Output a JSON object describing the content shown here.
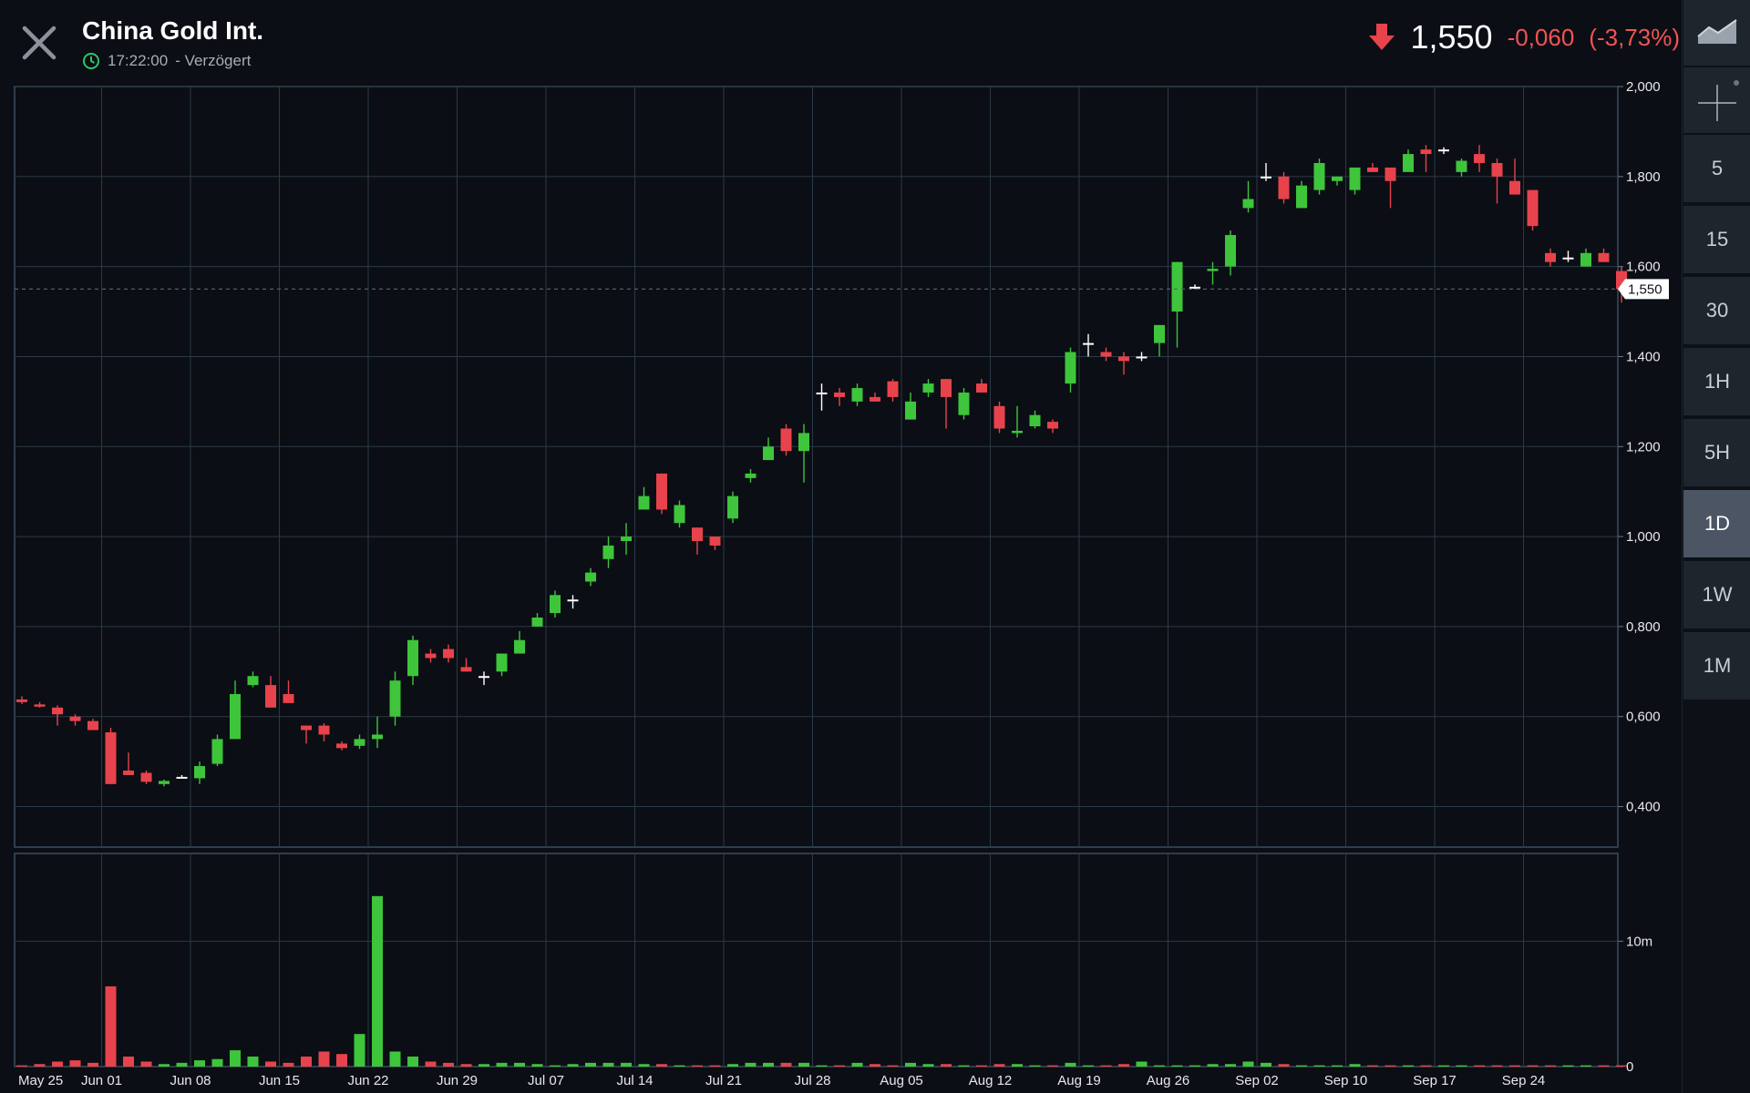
{
  "header": {
    "title": "China Gold Int.",
    "time": "17:22:00",
    "delay_label": "- Verzögert",
    "price": "1,550",
    "change": "-0,060",
    "change_pct": "(-3,73%)",
    "direction_icon": "arrow-down-icon"
  },
  "sidebar": {
    "tools": [
      "area-chart-icon",
      "crosshair-icon"
    ],
    "timeframes": [
      "5",
      "15",
      "30",
      "1H",
      "5H",
      "1D",
      "1W",
      "1M"
    ],
    "active_timeframe": "1D"
  },
  "colors": {
    "up": "#3ec53b",
    "down": "#e8434c",
    "neutral": "#ffffff",
    "grid": "#2b3a48",
    "background": "#0b0e14"
  },
  "chart_data": {
    "type": "candlestick",
    "title": "China Gold Int.",
    "y_ticks": [
      "2,000",
      "1,800",
      "1,600",
      "1,400",
      "1,200",
      "1,000",
      "0,800",
      "0,600",
      "0,400"
    ],
    "y_tick_values": [
      2.0,
      1.8,
      1.6,
      1.4,
      1.2,
      1.0,
      0.8,
      0.6,
      0.4
    ],
    "ylim": [
      0.31,
      2.0
    ],
    "last_price_label": "1,550",
    "last_price": 1.55,
    "x_ticks": [
      "May 25",
      "Jun 01",
      "Jun 08",
      "Jun 15",
      "Jun 22",
      "Jun 29",
      "Jul 07",
      "Jul 14",
      "Jul 21",
      "Jul 28",
      "Aug 05",
      "Aug 12",
      "Aug 19",
      "Aug 26",
      "Sep 02",
      "Sep 10",
      "Sep 17",
      "Sep 24"
    ],
    "x_tick_index": [
      0,
      5,
      10,
      15,
      20,
      25,
      30,
      35,
      40,
      45,
      50,
      55,
      60,
      65,
      70,
      75,
      80,
      85
    ],
    "volume_ticks": [
      "10m",
      "0"
    ],
    "volume_tick_values": [
      10,
      0
    ],
    "volume_max": 17,
    "candles": [
      [
        0.638,
        0.645,
        0.628,
        0.632
      ],
      [
        0.627,
        0.632,
        0.62,
        0.622
      ],
      [
        0.62,
        0.625,
        0.58,
        0.605
      ],
      [
        0.6,
        0.605,
        0.58,
        0.59
      ],
      [
        0.59,
        0.595,
        0.57,
        0.57
      ],
      [
        0.565,
        0.575,
        0.45,
        0.45
      ],
      [
        0.48,
        0.52,
        0.47,
        0.47
      ],
      [
        0.475,
        0.48,
        0.45,
        0.455
      ],
      [
        0.45,
        0.46,
        0.445,
        0.457
      ],
      [
        0.466,
        0.47,
        0.465,
        0.466
      ],
      [
        0.463,
        0.5,
        0.45,
        0.49
      ],
      [
        0.495,
        0.56,
        0.49,
        0.55
      ],
      [
        0.55,
        0.68,
        0.55,
        0.65
      ],
      [
        0.67,
        0.7,
        0.665,
        0.69
      ],
      [
        0.67,
        0.69,
        0.62,
        0.62
      ],
      [
        0.65,
        0.68,
        0.63,
        0.63
      ],
      [
        0.58,
        0.58,
        0.54,
        0.57
      ],
      [
        0.58,
        0.585,
        0.545,
        0.56
      ],
      [
        0.54,
        0.545,
        0.525,
        0.53
      ],
      [
        0.535,
        0.56,
        0.528,
        0.55
      ],
      [
        0.55,
        0.6,
        0.53,
        0.56
      ],
      [
        0.6,
        0.7,
        0.58,
        0.68
      ],
      [
        0.69,
        0.78,
        0.67,
        0.77
      ],
      [
        0.74,
        0.75,
        0.72,
        0.73
      ],
      [
        0.75,
        0.76,
        0.72,
        0.73
      ],
      [
        0.71,
        0.73,
        0.7,
        0.7
      ],
      [
        0.69,
        0.7,
        0.67,
        0.69
      ],
      [
        0.7,
        0.74,
        0.69,
        0.74
      ],
      [
        0.74,
        0.79,
        0.74,
        0.77
      ],
      [
        0.8,
        0.83,
        0.8,
        0.82
      ],
      [
        0.83,
        0.88,
        0.82,
        0.87
      ],
      [
        0.86,
        0.87,
        0.84,
        0.86
      ],
      [
        0.9,
        0.93,
        0.89,
        0.92
      ],
      [
        0.95,
        1.0,
        0.93,
        0.98
      ],
      [
        0.99,
        1.03,
        0.96,
        1.0
      ],
      [
        1.06,
        1.11,
        1.06,
        1.09
      ],
      [
        1.14,
        1.14,
        1.05,
        1.06
      ],
      [
        1.03,
        1.08,
        1.02,
        1.07
      ],
      [
        1.02,
        1.02,
        0.96,
        0.99
      ],
      [
        1.0,
        1.0,
        0.97,
        0.98
      ],
      [
        1.04,
        1.1,
        1.03,
        1.09
      ],
      [
        1.13,
        1.15,
        1.12,
        1.14
      ],
      [
        1.17,
        1.22,
        1.17,
        1.2
      ],
      [
        1.24,
        1.25,
        1.18,
        1.19
      ],
      [
        1.19,
        1.25,
        1.12,
        1.23
      ],
      [
        1.32,
        1.34,
        1.28,
        1.32
      ],
      [
        1.32,
        1.33,
        1.29,
        1.31
      ],
      [
        1.3,
        1.34,
        1.29,
        1.33
      ],
      [
        1.31,
        1.32,
        1.3,
        1.3
      ],
      [
        1.345,
        1.35,
        1.3,
        1.31
      ],
      [
        1.26,
        1.32,
        1.26,
        1.3
      ],
      [
        1.32,
        1.35,
        1.31,
        1.34
      ],
      [
        1.35,
        1.35,
        1.24,
        1.31
      ],
      [
        1.27,
        1.33,
        1.26,
        1.32
      ],
      [
        1.34,
        1.35,
        1.32,
        1.32
      ],
      [
        1.29,
        1.3,
        1.23,
        1.24
      ],
      [
        1.23,
        1.29,
        1.22,
        1.235
      ],
      [
        1.245,
        1.28,
        1.24,
        1.27
      ],
      [
        1.255,
        1.26,
        1.23,
        1.24
      ],
      [
        1.34,
        1.42,
        1.32,
        1.41
      ],
      [
        1.43,
        1.45,
        1.4,
        1.43
      ],
      [
        1.41,
        1.42,
        1.39,
        1.4
      ],
      [
        1.4,
        1.41,
        1.36,
        1.39
      ],
      [
        1.4,
        1.41,
        1.39,
        1.4
      ],
      [
        1.43,
        1.47,
        1.4,
        1.47
      ],
      [
        1.5,
        1.61,
        1.42,
        1.61
      ],
      [
        1.555,
        1.56,
        1.55,
        1.555
      ],
      [
        1.59,
        1.61,
        1.56,
        1.595
      ],
      [
        1.6,
        1.68,
        1.58,
        1.67
      ],
      [
        1.73,
        1.79,
        1.72,
        1.75
      ],
      [
        1.8,
        1.83,
        1.79,
        1.8
      ],
      [
        1.8,
        1.81,
        1.74,
        1.75
      ],
      [
        1.73,
        1.79,
        1.73,
        1.78
      ],
      [
        1.77,
        1.84,
        1.76,
        1.83
      ],
      [
        1.79,
        1.8,
        1.78,
        1.8
      ],
      [
        1.77,
        1.82,
        1.76,
        1.82
      ],
      [
        1.82,
        1.83,
        1.81,
        1.81
      ],
      [
        1.82,
        1.82,
        1.73,
        1.79
      ],
      [
        1.81,
        1.86,
        1.81,
        1.85
      ],
      [
        1.86,
        1.87,
        1.81,
        1.85
      ],
      [
        1.86,
        1.865,
        1.85,
        1.86
      ],
      [
        1.81,
        1.84,
        1.8,
        1.835
      ],
      [
        1.85,
        1.87,
        1.81,
        1.83
      ],
      [
        1.83,
        1.84,
        1.74,
        1.8
      ],
      [
        1.79,
        1.84,
        1.76,
        1.76
      ],
      [
        1.77,
        1.77,
        1.68,
        1.69
      ],
      [
        1.63,
        1.64,
        1.6,
        1.61
      ],
      [
        1.62,
        1.635,
        1.61,
        1.62
      ],
      [
        1.6,
        1.64,
        1.6,
        1.63
      ],
      [
        1.63,
        1.64,
        1.61,
        1.61
      ],
      [
        1.59,
        1.6,
        1.52,
        1.55
      ]
    ],
    "volumes": [
      0.1,
      0.2,
      0.4,
      0.5,
      0.3,
      6.4,
      0.8,
      0.4,
      0.2,
      0.3,
      0.5,
      0.6,
      1.3,
      0.8,
      0.4,
      0.3,
      0.8,
      1.2,
      1.0,
      2.6,
      13.6,
      1.2,
      0.8,
      0.4,
      0.3,
      0.2,
      0.2,
      0.3,
      0.3,
      0.2,
      0.1,
      0.2,
      0.3,
      0.3,
      0.3,
      0.2,
      0.2,
      0.1,
      0.1,
      0.1,
      0.2,
      0.3,
      0.3,
      0.3,
      0.3,
      0.1,
      0.1,
      0.3,
      0.2,
      0.1,
      0.3,
      0.2,
      0.2,
      0.1,
      0.1,
      0.2,
      0.2,
      0.1,
      0.1,
      0.3,
      0.1,
      0.1,
      0.2,
      0.4,
      0.1,
      0.1,
      0.1,
      0.2,
      0.2,
      0.4,
      0.3,
      0.2,
      0.1,
      0.1,
      0.1,
      0.2,
      0.1,
      0.1,
      0.1,
      0.1,
      0.1,
      0.1,
      0.1,
      0.1,
      0.1,
      0.1,
      0.1,
      0.1,
      0.1,
      0.1,
      0.1
    ]
  }
}
